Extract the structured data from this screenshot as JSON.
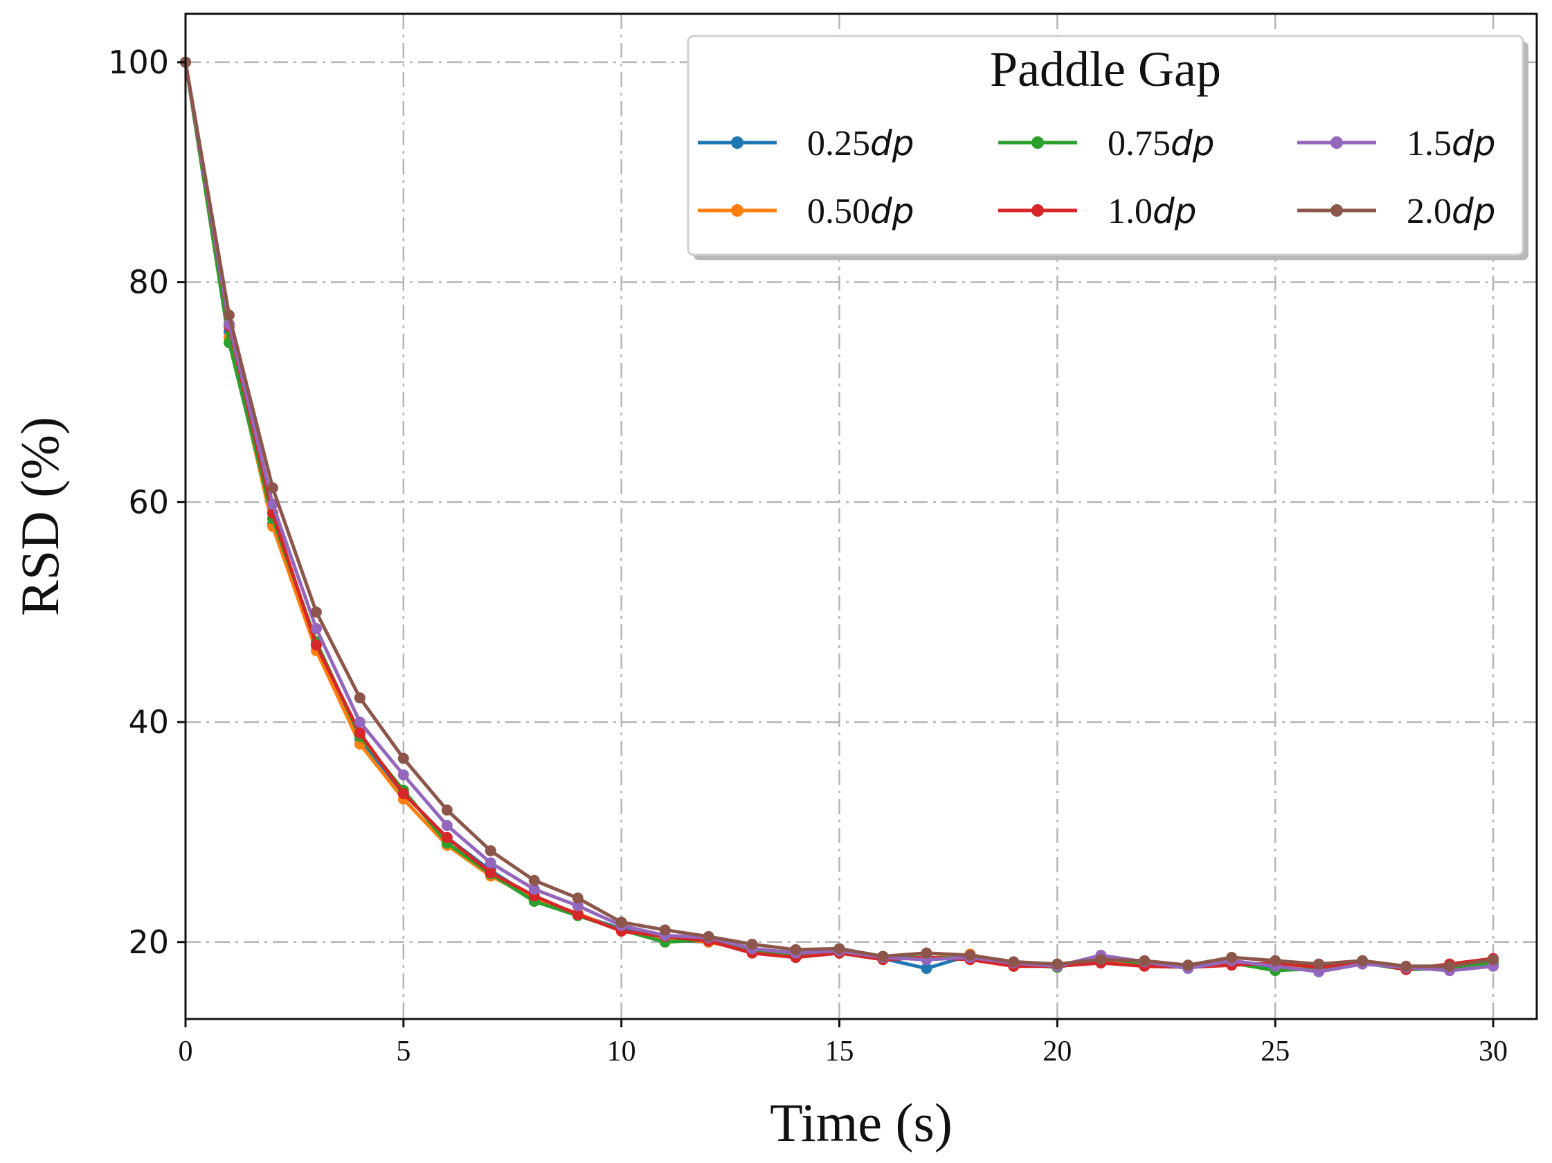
{
  "chart_data": {
    "type": "line",
    "xlabel": "Time (s)",
    "ylabel": "RSD (%)",
    "xlim": [
      0,
      31
    ],
    "ylim": [
      13,
      104.4
    ],
    "xticks": [
      0,
      5,
      10,
      15,
      20,
      25,
      30
    ],
    "yticks": [
      20,
      40,
      60,
      80,
      100
    ],
    "grid": true,
    "legend": {
      "title": "Paddle Gap",
      "placement": "top-right",
      "columns": 3
    },
    "x": [
      0,
      1,
      2,
      3,
      4,
      5,
      6,
      7,
      8,
      9,
      10,
      11,
      12,
      13,
      14,
      15,
      16,
      17,
      18,
      19,
      20,
      21,
      22,
      23,
      24,
      25,
      26,
      27,
      28,
      29,
      30
    ],
    "series": [
      {
        "name_num": "0.25",
        "name_unit": "dp",
        "color": "#1f77b4",
        "values": [
          100,
          75.5,
          58.0,
          47.0,
          38.5,
          33.5,
          29.5,
          26.5,
          24.0,
          22.5,
          21.2,
          20.2,
          20.0,
          19.3,
          18.8,
          19.0,
          18.5,
          17.6,
          18.8,
          18.0,
          17.8,
          18.3,
          18.0,
          17.8,
          18.2,
          17.5,
          17.5,
          18.1,
          17.6,
          17.5,
          18.0
        ]
      },
      {
        "name_num": "0.50",
        "name_unit": "dp",
        "color": "#ff7f0e",
        "values": [
          100,
          75.0,
          57.8,
          46.5,
          38.0,
          33.0,
          28.8,
          26.0,
          24.0,
          22.6,
          21.0,
          20.3,
          20.0,
          19.2,
          18.8,
          19.0,
          18.7,
          18.5,
          18.9,
          17.8,
          17.9,
          18.3,
          18.0,
          17.7,
          18.2,
          17.9,
          17.8,
          18.2,
          17.6,
          17.7,
          18.3
        ]
      },
      {
        "name_num": "0.75",
        "name_unit": "dp",
        "color": "#2ca02c",
        "values": [
          100,
          74.5,
          58.5,
          47.3,
          38.7,
          33.8,
          29.0,
          26.2,
          23.7,
          22.4,
          21.1,
          20.0,
          20.2,
          19.2,
          18.8,
          19.0,
          18.6,
          18.6,
          18.5,
          18.0,
          17.7,
          18.5,
          18.1,
          17.8,
          18.1,
          17.4,
          17.6,
          18.1,
          17.5,
          17.6,
          18.1
        ]
      },
      {
        "name_num": "1.0",
        "name_unit": "dp",
        "color": "#d62728",
        "values": [
          100,
          76.0,
          59.0,
          47.0,
          39.0,
          33.5,
          29.5,
          26.3,
          24.2,
          22.5,
          21.0,
          20.5,
          20.1,
          19.0,
          18.6,
          19.0,
          18.4,
          18.6,
          18.4,
          17.8,
          17.8,
          18.1,
          17.8,
          17.7,
          17.9,
          18.1,
          17.7,
          18.2,
          17.5,
          18.0,
          18.5
        ]
      },
      {
        "name_num": "1.5",
        "name_unit": "dp",
        "color": "#9467bd",
        "values": [
          100,
          76.2,
          59.8,
          48.5,
          40.0,
          35.2,
          30.6,
          27.2,
          24.8,
          23.3,
          21.5,
          20.6,
          20.4,
          19.4,
          19.0,
          19.2,
          18.6,
          18.4,
          18.6,
          18.1,
          17.8,
          18.8,
          18.2,
          17.6,
          18.3,
          17.8,
          17.3,
          18.0,
          17.7,
          17.4,
          17.8
        ]
      },
      {
        "name_num": "2.0",
        "name_unit": "dp",
        "color": "#8c564b",
        "values": [
          100,
          77.0,
          61.3,
          50.0,
          42.2,
          36.7,
          32.0,
          28.3,
          25.6,
          24.0,
          21.8,
          21.1,
          20.5,
          19.8,
          19.3,
          19.4,
          18.7,
          19.0,
          18.8,
          18.2,
          18.0,
          18.4,
          18.3,
          17.9,
          18.6,
          18.3,
          18.0,
          18.3,
          17.8,
          17.8,
          18.4
        ]
      }
    ]
  }
}
